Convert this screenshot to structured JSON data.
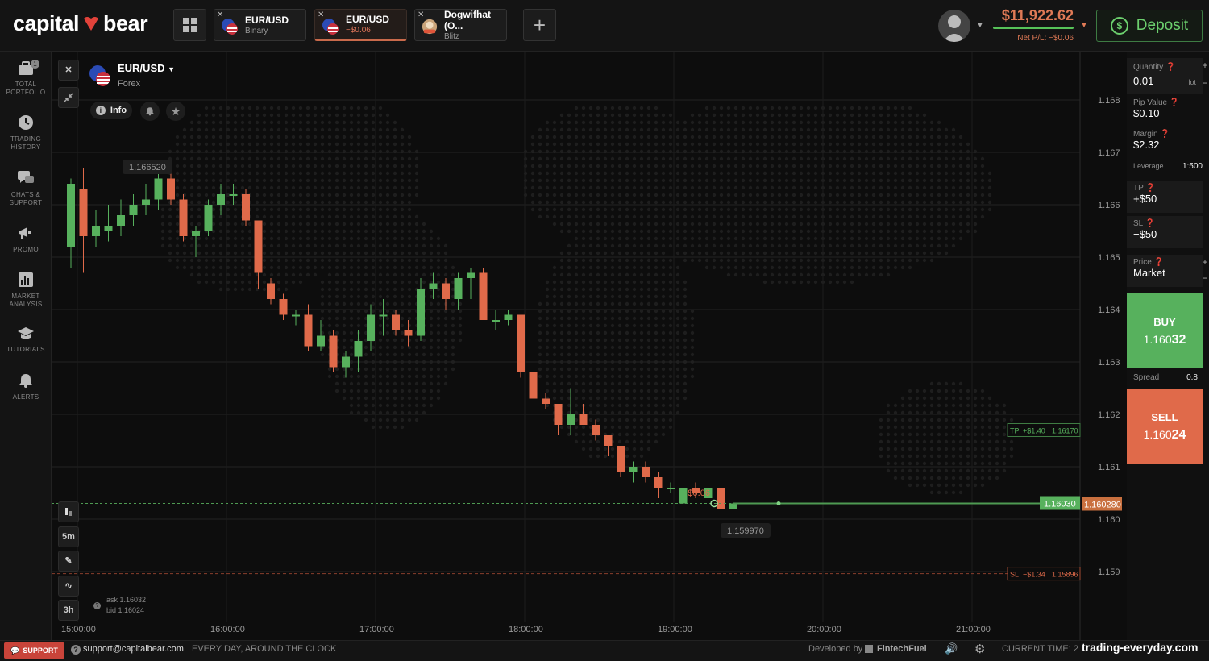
{
  "header": {
    "logo_left": "capital",
    "logo_right": "bear",
    "tabs": [
      {
        "title": "EUR/USD",
        "subtitle": "Binary",
        "active": false
      },
      {
        "title": "EUR/USD",
        "subtitle": "−$0.06",
        "active": true
      },
      {
        "title": "Dogwifhat (O...",
        "subtitle": "Blitz",
        "active": false
      }
    ],
    "balance": "$11,922.62",
    "net_pl": "Net P/L: −$0.06",
    "deposit_label": "Deposit"
  },
  "sidebar": {
    "items": [
      {
        "label_1": "TOTAL",
        "label_2": "PORTFOLIO",
        "icon": "briefcase-icon",
        "badge": "1"
      },
      {
        "label_1": "TRADING",
        "label_2": "HISTORY",
        "icon": "clock-icon"
      },
      {
        "label_1": "CHATS &",
        "label_2": "SUPPORT",
        "icon": "chat-icon"
      },
      {
        "label_1": "PROMO",
        "label_2": "",
        "icon": "megaphone-icon"
      },
      {
        "label_1": "MARKET",
        "label_2": "ANALYSIS",
        "icon": "bar-chart-icon"
      },
      {
        "label_1": "TUTORIALS",
        "label_2": "",
        "icon": "graduation-cap-icon"
      },
      {
        "label_1": "ALERTS",
        "label_2": "",
        "icon": "bell-icon"
      }
    ]
  },
  "chart": {
    "symbol": "EUR/USD",
    "type": "Forex",
    "info_label": "Info",
    "timeframe": "5m",
    "range": "3h",
    "ask": "ask 1.16032",
    "bid": "bid 1.16024",
    "high_label": "1.166520",
    "low_label": "1.159970",
    "pl_label": "−$0.06",
    "current_ask_tag": "1.16030",
    "current_bid_tag": "1.160280",
    "tp_tag": {
      "prefix": "TP",
      "pl": "+$1.40",
      "price": "1.16170"
    },
    "sl_tag": {
      "prefix": "SL",
      "pl": "−$1.34",
      "price": "1.15896"
    }
  },
  "chart_data": {
    "type": "candlestick",
    "title": "",
    "xlabel": "",
    "ylabel": "",
    "ylim": [
      1.1585,
      1.1685
    ],
    "yticks": [
      "1.168",
      "1.167",
      "1.166",
      "1.165",
      "1.164",
      "1.163",
      "1.162",
      "1.161",
      "1.160",
      "1.159"
    ],
    "xticks": [
      "15:00:00",
      "16:00:00",
      "17:00:00",
      "18:00:00",
      "19:00:00",
      "20:00:00",
      "21:00:00"
    ],
    "grid": true,
    "candles": [
      {
        "o": 1.1652,
        "h": 1.1665,
        "l": 1.1648,
        "c": 1.1664
      },
      {
        "o": 1.1663,
        "h": 1.1667,
        "l": 1.1647,
        "c": 1.1654
      },
      {
        "o": 1.1654,
        "h": 1.1659,
        "l": 1.1652,
        "c": 1.1656
      },
      {
        "o": 1.1655,
        "h": 1.166,
        "l": 1.1653,
        "c": 1.1656
      },
      {
        "o": 1.1656,
        "h": 1.1661,
        "l": 1.1654,
        "c": 1.1658
      },
      {
        "o": 1.1658,
        "h": 1.1662,
        "l": 1.1656,
        "c": 1.166
      },
      {
        "o": 1.166,
        "h": 1.1664,
        "l": 1.1658,
        "c": 1.1661
      },
      {
        "o": 1.1661,
        "h": 1.1667,
        "l": 1.1659,
        "c": 1.1665
      },
      {
        "o": 1.1665,
        "h": 1.1666,
        "l": 1.166,
        "c": 1.1661
      },
      {
        "o": 1.1661,
        "h": 1.1662,
        "l": 1.1653,
        "c": 1.1654
      },
      {
        "o": 1.1654,
        "h": 1.1656,
        "l": 1.165,
        "c": 1.1655
      },
      {
        "o": 1.1655,
        "h": 1.1661,
        "l": 1.1654,
        "c": 1.166
      },
      {
        "o": 1.166,
        "h": 1.1664,
        "l": 1.1658,
        "c": 1.1662
      },
      {
        "o": 1.1662,
        "h": 1.1664,
        "l": 1.166,
        "c": 1.1662
      },
      {
        "o": 1.1662,
        "h": 1.1663,
        "l": 1.1656,
        "c": 1.1657
      },
      {
        "o": 1.1657,
        "h": 1.1657,
        "l": 1.1644,
        "c": 1.1647
      },
      {
        "o": 1.1645,
        "h": 1.1646,
        "l": 1.1641,
        "c": 1.1642
      },
      {
        "o": 1.1642,
        "h": 1.1643,
        "l": 1.1638,
        "c": 1.1639
      },
      {
        "o": 1.1639,
        "h": 1.164,
        "l": 1.1637,
        "c": 1.1639
      },
      {
        "o": 1.1639,
        "h": 1.1641,
        "l": 1.1632,
        "c": 1.1633
      },
      {
        "o": 1.1633,
        "h": 1.1638,
        "l": 1.1632,
        "c": 1.1635
      },
      {
        "o": 1.1635,
        "h": 1.1636,
        "l": 1.1628,
        "c": 1.1629
      },
      {
        "o": 1.1629,
        "h": 1.1632,
        "l": 1.1627,
        "c": 1.1631
      },
      {
        "o": 1.1631,
        "h": 1.1636,
        "l": 1.1628,
        "c": 1.1634
      },
      {
        "o": 1.1634,
        "h": 1.1641,
        "l": 1.1632,
        "c": 1.1639
      },
      {
        "o": 1.1639,
        "h": 1.1642,
        "l": 1.1635,
        "c": 1.1639
      },
      {
        "o": 1.1639,
        "h": 1.164,
        "l": 1.1635,
        "c": 1.1636
      },
      {
        "o": 1.1636,
        "h": 1.1638,
        "l": 1.1633,
        "c": 1.1635
      },
      {
        "o": 1.1635,
        "h": 1.1646,
        "l": 1.1634,
        "c": 1.1644
      },
      {
        "o": 1.1644,
        "h": 1.1647,
        "l": 1.1642,
        "c": 1.1645
      },
      {
        "o": 1.1645,
        "h": 1.1646,
        "l": 1.164,
        "c": 1.1642
      },
      {
        "o": 1.1642,
        "h": 1.1647,
        "l": 1.164,
        "c": 1.1646
      },
      {
        "o": 1.1646,
        "h": 1.1648,
        "l": 1.1642,
        "c": 1.1647
      },
      {
        "o": 1.1647,
        "h": 1.1648,
        "l": 1.1638,
        "c": 1.1638
      },
      {
        "o": 1.1638,
        "h": 1.164,
        "l": 1.1636,
        "c": 1.1638
      },
      {
        "o": 1.1638,
        "h": 1.164,
        "l": 1.1637,
        "c": 1.1639
      },
      {
        "o": 1.1639,
        "h": 1.1639,
        "l": 1.1627,
        "c": 1.1628
      },
      {
        "o": 1.1628,
        "h": 1.1628,
        "l": 1.1623,
        "c": 1.1623
      },
      {
        "o": 1.1623,
        "h": 1.1624,
        "l": 1.1621,
        "c": 1.1622
      },
      {
        "o": 1.1622,
        "h": 1.1622,
        "l": 1.1616,
        "c": 1.1618
      },
      {
        "o": 1.1618,
        "h": 1.1625,
        "l": 1.1616,
        "c": 1.162
      },
      {
        "o": 1.162,
        "h": 1.1622,
        "l": 1.1618,
        "c": 1.1618
      },
      {
        "o": 1.1618,
        "h": 1.1619,
        "l": 1.1615,
        "c": 1.1616
      },
      {
        "o": 1.1616,
        "h": 1.1616,
        "l": 1.1612,
        "c": 1.1614
      },
      {
        "o": 1.1614,
        "h": 1.1614,
        "l": 1.1608,
        "c": 1.1609
      },
      {
        "o": 1.1609,
        "h": 1.1611,
        "l": 1.1607,
        "c": 1.161
      },
      {
        "o": 1.161,
        "h": 1.1611,
        "l": 1.1607,
        "c": 1.1608
      },
      {
        "o": 1.1608,
        "h": 1.1609,
        "l": 1.1604,
        "c": 1.1606
      },
      {
        "o": 1.1606,
        "h": 1.1607,
        "l": 1.1605,
        "c": 1.1606
      },
      {
        "o": 1.1603,
        "h": 1.1608,
        "l": 1.1601,
        "c": 1.1606
      },
      {
        "o": 1.1606,
        "h": 1.1607,
        "l": 1.1604,
        "c": 1.1605
      },
      {
        "o": 1.1604,
        "h": 1.1607,
        "l": 1.1603,
        "c": 1.1606
      },
      {
        "o": 1.1606,
        "h": 1.1606,
        "l": 1.1602,
        "c": 1.1602
      },
      {
        "o": 1.1602,
        "h": 1.1604,
        "l": 1.15997,
        "c": 1.1603
      }
    ],
    "current_price": 1.1603,
    "tp_price": 1.1617,
    "sl_price": 1.15896
  },
  "panel": {
    "quantity_label": "Quantity",
    "quantity_value": "0.01",
    "quantity_unit": "lot",
    "pip_label": "Pip Value",
    "pip_value": "$0.10",
    "margin_label": "Margin",
    "margin_value": "$2.32",
    "leverage_label": "Leverage",
    "leverage_value": "1:500",
    "tp_label": "TP",
    "tp_value": "+$50",
    "sl_label": "SL",
    "sl_value": "−$50",
    "price_label": "Price",
    "price_value": "Market",
    "buy_label": "BUY",
    "buy_price_main": "1.160",
    "buy_price_big": "32",
    "spread_label": "Spread",
    "spread_value": "0.8",
    "sell_label": "SELL",
    "sell_price_main": "1.160",
    "sell_price_big": "24"
  },
  "footer": {
    "support_label": "SUPPORT",
    "email": "support@capitalbear.com",
    "availability": "EVERY DAY, AROUND THE CLOCK",
    "developed_by": "Developed by",
    "developer": "FintechFuel",
    "current_time_label": "CURRENT TIME: 28",
    "watermark": "trading-everyday.com"
  },
  "colors": {
    "up": "#57b15d",
    "down": "#e06a4a",
    "accent": "#e07a56",
    "background": "#0d0d0d"
  }
}
